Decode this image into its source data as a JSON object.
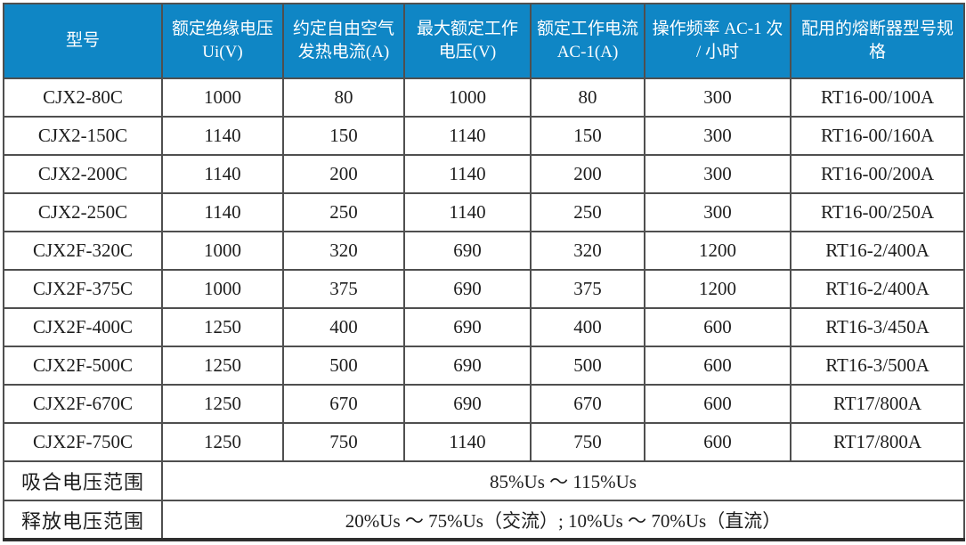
{
  "accent_color": "#0f86c5",
  "grid_color": "#4f4f4f",
  "table": {
    "columns": [
      "型号",
      "额定绝缘电压 Ui(V)",
      "约定自由空气发热电流(A)",
      "最大额定工作电压(V)",
      "额定工作电流 AC-1(A)",
      "操作频率 AC-1 次 / 小时",
      "配用的熔断器型号规格"
    ],
    "rows": [
      [
        "CJX2-80C",
        "1000",
        "80",
        "1000",
        "80",
        "300",
        "RT16-00/100A"
      ],
      [
        "CJX2-150C",
        "1140",
        "150",
        "1140",
        "150",
        "300",
        "RT16-00/160A"
      ],
      [
        "CJX2-200C",
        "1140",
        "200",
        "1140",
        "200",
        "300",
        "RT16-00/200A"
      ],
      [
        "CJX2-250C",
        "1140",
        "250",
        "1140",
        "250",
        "300",
        "RT16-00/250A"
      ],
      [
        "CJX2F-320C",
        "1000",
        "320",
        "690",
        "320",
        "1200",
        "RT16-2/400A"
      ],
      [
        "CJX2F-375C",
        "1000",
        "375",
        "690",
        "375",
        "1200",
        "RT16-2/400A"
      ],
      [
        "CJX2F-400C",
        "1250",
        "400",
        "690",
        "400",
        "600",
        "RT16-3/450A"
      ],
      [
        "CJX2F-500C",
        "1250",
        "500",
        "690",
        "500",
        "600",
        "RT16-3/500A"
      ],
      [
        "CJX2F-670C",
        "1250",
        "670",
        "690",
        "670",
        "600",
        "RT17/800A"
      ],
      [
        "CJX2F-750C",
        "1250",
        "750",
        "1140",
        "750",
        "600",
        "RT17/800A"
      ]
    ],
    "footer_rows": [
      {
        "label": "吸合电压范围",
        "value": "85%Us ～ 115%Us"
      },
      {
        "label": "释放电压范围",
        "value": "20%Us ～ 75%Us（交流）; 10%Us ～ 70%Us（直流）"
      }
    ]
  }
}
